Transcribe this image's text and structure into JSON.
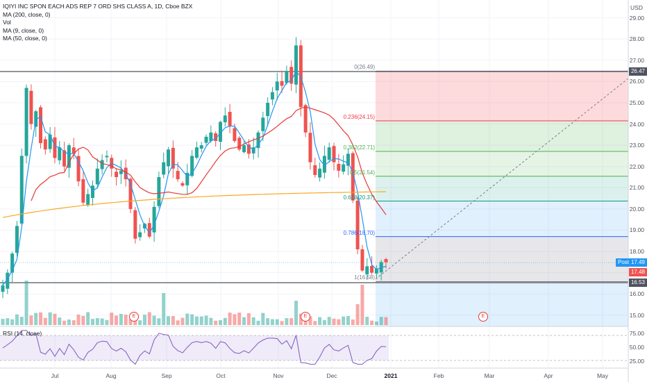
{
  "symbol_title": "IQIYI INC SPON EACH ADS REP 7 ORD SHS CLASS A, 1D, Cboe BZX",
  "indicators": [
    "MA (200, close, 0)",
    "Vol",
    "MA (9, close, 0)",
    "MA (50, close, 0)"
  ],
  "rsi_label": "RSI (14, close)",
  "currency": "USD",
  "price_axis_ticks": [
    "29.00",
    "28.00",
    "27.00",
    "26.00",
    "25.00",
    "24.00",
    "23.00",
    "22.00",
    "21.00",
    "20.00",
    "19.00",
    "18.00",
    "17.00",
    "16.00",
    "15.00"
  ],
  "rsi_axis_ticks": [
    "75.00",
    "50.00",
    "25.00"
  ],
  "time_axis_labels": [
    "Jul",
    "Aug",
    "Sep",
    "Oct",
    "Nov",
    "Dec",
    "2021",
    "Feb",
    "Mar",
    "Apr",
    "May"
  ],
  "price_tags": {
    "high_line": "26.47",
    "current": "17.49",
    "current_red": "17.48",
    "low_line": "16.53",
    "post_label": "Post"
  },
  "fib_levels": [
    {
      "label": "0(26.49)",
      "color": "#787b86"
    },
    {
      "label": "0.236(24.15)",
      "color": "#f23645"
    },
    {
      "label": "0.382(22.71)",
      "color": "#4caf50"
    },
    {
      "label": "0.5(21.54)",
      "color": "#4caf50"
    },
    {
      "label": "0.618(20.37)",
      "color": "#089981"
    },
    {
      "label": "0.786(18.70)",
      "color": "#2962ff"
    },
    {
      "label": "1(16.58)",
      "color": "#787b86"
    }
  ],
  "earnings_marker": "E",
  "colors": {
    "up": "#26a69a",
    "down": "#ef5350",
    "ma9": "#2196f3",
    "ma50": "#e53935",
    "ma200": "#f9a825",
    "rsi": "#7e57c2"
  },
  "chart_data": {
    "type": "candlestick",
    "title": "IQIYI INC SPON EACH ADS REP 7 ORD SHS CLASS A, 1D, Cboe BZX",
    "ylim": [
      14.6,
      29.5
    ],
    "close_series_approx": [
      16.4,
      17.0,
      17.9,
      19.2,
      22.5,
      25.7,
      24.0,
      24.6,
      23.1,
      22.8,
      23.5,
      22.4,
      22.9,
      22.0,
      23.0,
      22.6,
      21.3,
      20.3,
      20.7,
      21.1,
      21.9,
      22.3,
      22.5,
      21.9,
      21.5,
      21.8,
      21.4,
      20.0,
      18.6,
      18.9,
      19.3,
      18.7,
      20.1,
      21.5,
      22.2,
      22.8,
      21.9,
      21.4,
      21.1,
      21.7,
      22.5,
      22.9,
      23.0,
      23.4,
      23.6,
      23.2,
      24.1,
      24.4,
      23.9,
      23.2,
      22.8,
      23.0,
      22.6,
      22.9,
      23.6,
      24.3,
      25.0,
      25.5,
      26.0,
      25.8,
      26.5,
      25.9,
      27.7,
      24.8,
      23.6,
      22.2,
      21.6,
      21.9,
      22.5,
      22.9,
      22.2,
      21.8,
      22.1,
      22.6,
      20.4,
      18.1,
      17.1,
      17.3,
      17.0,
      17.2,
      17.5,
      17.49
    ],
    "annotations": [
      "Fibonacci retracement 0(26.49) to 1(16.58)",
      "Long position projection"
    ]
  }
}
